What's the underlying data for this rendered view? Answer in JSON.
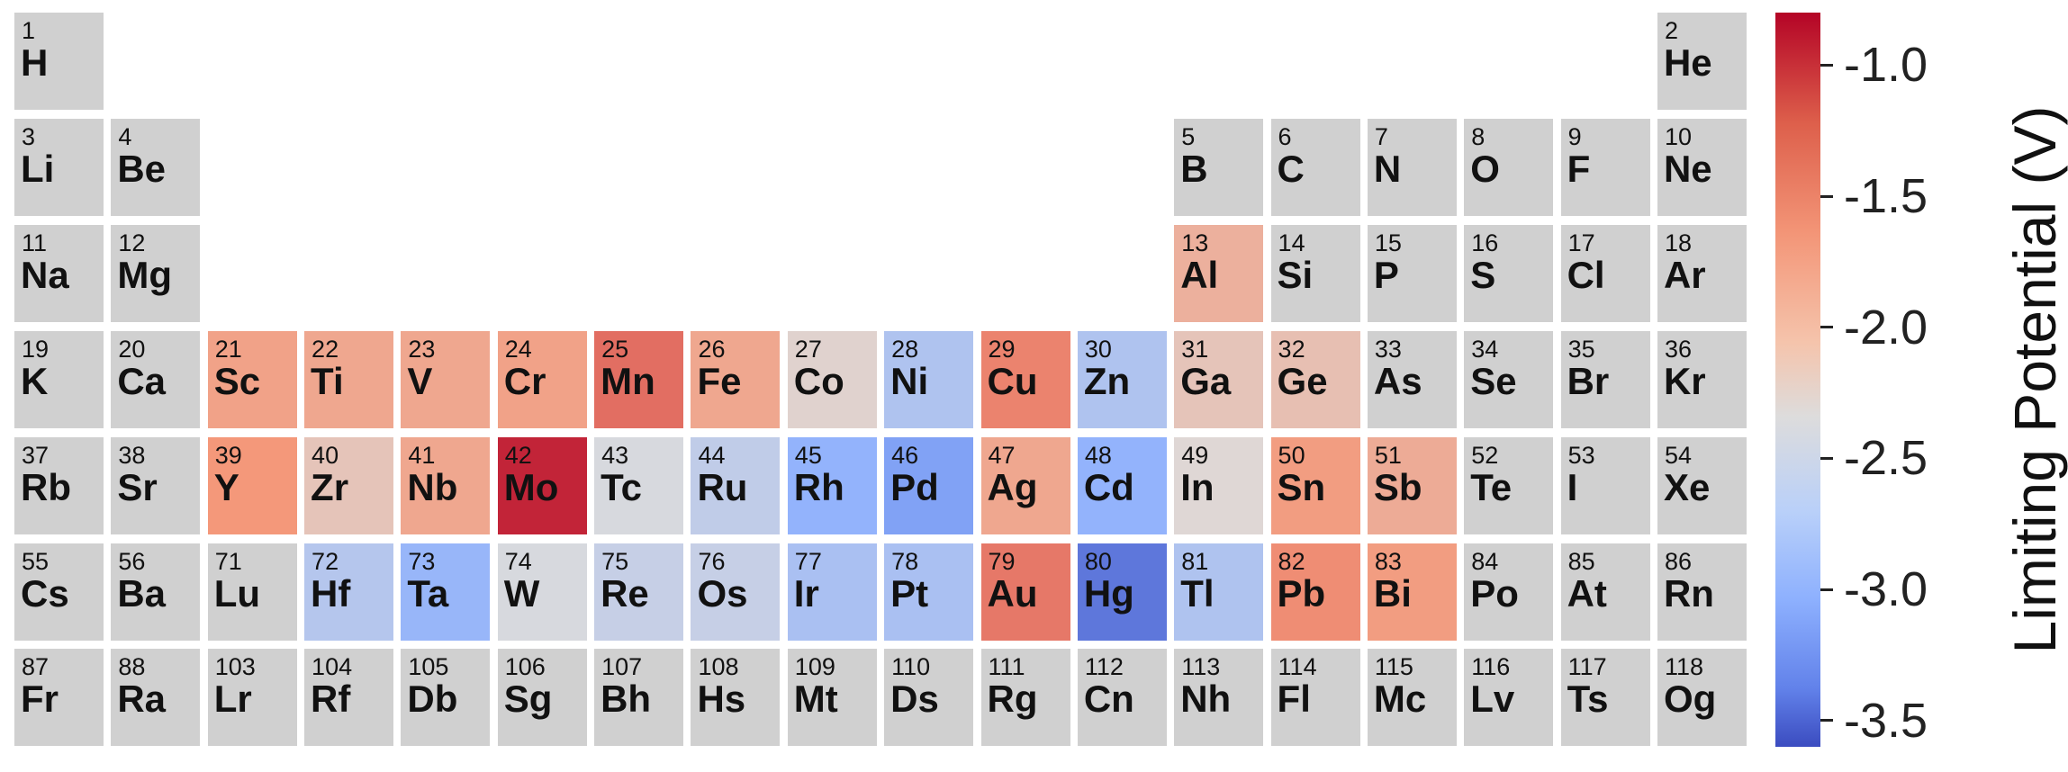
{
  "chart_data": {
    "type": "heatmap",
    "title": "",
    "colorbar": {
      "label": "Limiting Potential (V)",
      "range": [
        -3.6,
        -0.8
      ],
      "ticks": [
        "-1.0",
        "-1.5",
        "-2.0",
        "-2.5",
        "-3.0",
        "-3.5"
      ],
      "tick_values": [
        -1.0,
        -1.5,
        -2.0,
        -2.5,
        -3.0,
        -3.5
      ],
      "colormap": "coolwarm (low=blue, high=red)"
    },
    "no_data_color": "#d0d0d0",
    "elements": [
      {
        "n": "1",
        "s": "H",
        "row": 1,
        "col": 1,
        "v": null
      },
      {
        "n": "2",
        "s": "He",
        "row": 1,
        "col": 18,
        "v": null
      },
      {
        "n": "3",
        "s": "Li",
        "row": 2,
        "col": 1,
        "v": null
      },
      {
        "n": "4",
        "s": "Be",
        "row": 2,
        "col": 2,
        "v": null
      },
      {
        "n": "5",
        "s": "B",
        "row": 2,
        "col": 13,
        "v": null
      },
      {
        "n": "6",
        "s": "C",
        "row": 2,
        "col": 14,
        "v": null
      },
      {
        "n": "7",
        "s": "N",
        "row": 2,
        "col": 15,
        "v": null
      },
      {
        "n": "8",
        "s": "O",
        "row": 2,
        "col": 16,
        "v": null
      },
      {
        "n": "9",
        "s": "F",
        "row": 2,
        "col": 17,
        "v": null
      },
      {
        "n": "10",
        "s": "Ne",
        "row": 2,
        "col": 18,
        "v": null
      },
      {
        "n": "11",
        "s": "Na",
        "row": 3,
        "col": 1,
        "v": null
      },
      {
        "n": "12",
        "s": "Mg",
        "row": 3,
        "col": 2,
        "v": null
      },
      {
        "n": "13",
        "s": "Al",
        "row": 3,
        "col": 13,
        "v": -1.75
      },
      {
        "n": "14",
        "s": "Si",
        "row": 3,
        "col": 14,
        "v": null
      },
      {
        "n": "15",
        "s": "P",
        "row": 3,
        "col": 15,
        "v": null
      },
      {
        "n": "16",
        "s": "S",
        "row": 3,
        "col": 16,
        "v": null
      },
      {
        "n": "17",
        "s": "Cl",
        "row": 3,
        "col": 17,
        "v": null
      },
      {
        "n": "18",
        "s": "Ar",
        "row": 3,
        "col": 18,
        "v": null
      },
      {
        "n": "19",
        "s": "K",
        "row": 4,
        "col": 1,
        "v": null
      },
      {
        "n": "20",
        "s": "Ca",
        "row": 4,
        "col": 2,
        "v": null
      },
      {
        "n": "21",
        "s": "Sc",
        "row": 4,
        "col": 3,
        "v": -1.6
      },
      {
        "n": "22",
        "s": "Ti",
        "row": 4,
        "col": 4,
        "v": -1.65
      },
      {
        "n": "23",
        "s": "V",
        "row": 4,
        "col": 5,
        "v": -1.65
      },
      {
        "n": "24",
        "s": "Cr",
        "row": 4,
        "col": 6,
        "v": -1.6
      },
      {
        "n": "25",
        "s": "Mn",
        "row": 4,
        "col": 7,
        "v": -1.3
      },
      {
        "n": "26",
        "s": "Fe",
        "row": 4,
        "col": 8,
        "v": -1.65
      },
      {
        "n": "27",
        "s": "Co",
        "row": 4,
        "col": 9,
        "v": -2.1
      },
      {
        "n": "28",
        "s": "Ni",
        "row": 4,
        "col": 10,
        "v": -2.6
      },
      {
        "n": "29",
        "s": "Cu",
        "row": 4,
        "col": 11,
        "v": -1.4
      },
      {
        "n": "30",
        "s": "Zn",
        "row": 4,
        "col": 12,
        "v": -2.6
      },
      {
        "n": "31",
        "s": "Ga",
        "row": 4,
        "col": 13,
        "v": -1.95
      },
      {
        "n": "32",
        "s": "Ge",
        "row": 4,
        "col": 14,
        "v": -1.9
      },
      {
        "n": "33",
        "s": "As",
        "row": 4,
        "col": 15,
        "v": null
      },
      {
        "n": "34",
        "s": "Se",
        "row": 4,
        "col": 16,
        "v": null
      },
      {
        "n": "35",
        "s": "Br",
        "row": 4,
        "col": 17,
        "v": null
      },
      {
        "n": "36",
        "s": "Kr",
        "row": 4,
        "col": 18,
        "v": null
      },
      {
        "n": "37",
        "s": "Rb",
        "row": 5,
        "col": 1,
        "v": null
      },
      {
        "n": "38",
        "s": "Sr",
        "row": 5,
        "col": 2,
        "v": null
      },
      {
        "n": "39",
        "s": "Y",
        "row": 5,
        "col": 3,
        "v": -1.5
      },
      {
        "n": "40",
        "s": "Zr",
        "row": 5,
        "col": 4,
        "v": -1.95
      },
      {
        "n": "41",
        "s": "Nb",
        "row": 5,
        "col": 5,
        "v": -1.65
      },
      {
        "n": "42",
        "s": "Mo",
        "row": 5,
        "col": 6,
        "v": -0.95
      },
      {
        "n": "43",
        "s": "Tc",
        "row": 5,
        "col": 7,
        "v": -2.25
      },
      {
        "n": "44",
        "s": "Ru",
        "row": 5,
        "col": 8,
        "v": -2.45
      },
      {
        "n": "45",
        "s": "Rh",
        "row": 5,
        "col": 9,
        "v": -2.85
      },
      {
        "n": "46",
        "s": "Pd",
        "row": 5,
        "col": 10,
        "v": -3.0
      },
      {
        "n": "47",
        "s": "Ag",
        "row": 5,
        "col": 11,
        "v": -1.65
      },
      {
        "n": "48",
        "s": "Cd",
        "row": 5,
        "col": 12,
        "v": -2.85
      },
      {
        "n": "49",
        "s": "In",
        "row": 5,
        "col": 13,
        "v": -2.15
      },
      {
        "n": "50",
        "s": "Sn",
        "row": 5,
        "col": 14,
        "v": -1.55
      },
      {
        "n": "51",
        "s": "Sb",
        "row": 5,
        "col": 15,
        "v": -1.7
      },
      {
        "n": "52",
        "s": "Te",
        "row": 5,
        "col": 16,
        "v": null
      },
      {
        "n": "53",
        "s": "I",
        "row": 5,
        "col": 17,
        "v": null
      },
      {
        "n": "54",
        "s": "Xe",
        "row": 5,
        "col": 18,
        "v": null
      },
      {
        "n": "55",
        "s": "Cs",
        "row": 6,
        "col": 1,
        "v": null
      },
      {
        "n": "56",
        "s": "Ba",
        "row": 6,
        "col": 2,
        "v": null
      },
      {
        "n": "71",
        "s": "Lu",
        "row": 6,
        "col": 3,
        "v": null
      },
      {
        "n": "72",
        "s": "Hf",
        "row": 6,
        "col": 4,
        "v": -2.55
      },
      {
        "n": "73",
        "s": "Ta",
        "row": 6,
        "col": 5,
        "v": -2.8
      },
      {
        "n": "74",
        "s": "W",
        "row": 6,
        "col": 6,
        "v": -2.25
      },
      {
        "n": "75",
        "s": "Re",
        "row": 6,
        "col": 7,
        "v": -2.4
      },
      {
        "n": "76",
        "s": "Os",
        "row": 6,
        "col": 8,
        "v": -2.4
      },
      {
        "n": "77",
        "s": "Ir",
        "row": 6,
        "col": 9,
        "v": -2.65
      },
      {
        "n": "78",
        "s": "Pt",
        "row": 6,
        "col": 10,
        "v": -2.65
      },
      {
        "n": "79",
        "s": "Au",
        "row": 6,
        "col": 11,
        "v": -1.35
      },
      {
        "n": "80",
        "s": "Hg",
        "row": 6,
        "col": 12,
        "v": -3.3
      },
      {
        "n": "81",
        "s": "Tl",
        "row": 6,
        "col": 13,
        "v": -2.6
      },
      {
        "n": "82",
        "s": "Pb",
        "row": 6,
        "col": 14,
        "v": -1.45
      },
      {
        "n": "83",
        "s": "Bi",
        "row": 6,
        "col": 15,
        "v": -1.55
      },
      {
        "n": "84",
        "s": "Po",
        "row": 6,
        "col": 16,
        "v": null
      },
      {
        "n": "85",
        "s": "At",
        "row": 6,
        "col": 17,
        "v": null
      },
      {
        "n": "86",
        "s": "Rn",
        "row": 6,
        "col": 18,
        "v": null
      },
      {
        "n": "87",
        "s": "Fr",
        "row": 7,
        "col": 1,
        "v": null
      },
      {
        "n": "88",
        "s": "Ra",
        "row": 7,
        "col": 2,
        "v": null
      },
      {
        "n": "103",
        "s": "Lr",
        "row": 7,
        "col": 3,
        "v": null
      },
      {
        "n": "104",
        "s": "Rf",
        "row": 7,
        "col": 4,
        "v": null
      },
      {
        "n": "105",
        "s": "Db",
        "row": 7,
        "col": 5,
        "v": null
      },
      {
        "n": "106",
        "s": "Sg",
        "row": 7,
        "col": 6,
        "v": null
      },
      {
        "n": "107",
        "s": "Bh",
        "row": 7,
        "col": 7,
        "v": null
      },
      {
        "n": "108",
        "s": "Hs",
        "row": 7,
        "col": 8,
        "v": null
      },
      {
        "n": "109",
        "s": "Mt",
        "row": 7,
        "col": 9,
        "v": null
      },
      {
        "n": "110",
        "s": "Ds",
        "row": 7,
        "col": 10,
        "v": null
      },
      {
        "n": "111",
        "s": "Rg",
        "row": 7,
        "col": 11,
        "v": null
      },
      {
        "n": "112",
        "s": "Cn",
        "row": 7,
        "col": 12,
        "v": null
      },
      {
        "n": "113",
        "s": "Nh",
        "row": 7,
        "col": 13,
        "v": null
      },
      {
        "n": "114",
        "s": "Fl",
        "row": 7,
        "col": 14,
        "v": null
      },
      {
        "n": "115",
        "s": "Mc",
        "row": 7,
        "col": 15,
        "v": null
      },
      {
        "n": "116",
        "s": "Lv",
        "row": 7,
        "col": 16,
        "v": null
      },
      {
        "n": "117",
        "s": "Ts",
        "row": 7,
        "col": 17,
        "v": null
      },
      {
        "n": "118",
        "s": "Og",
        "row": 7,
        "col": 18,
        "v": null
      }
    ]
  }
}
